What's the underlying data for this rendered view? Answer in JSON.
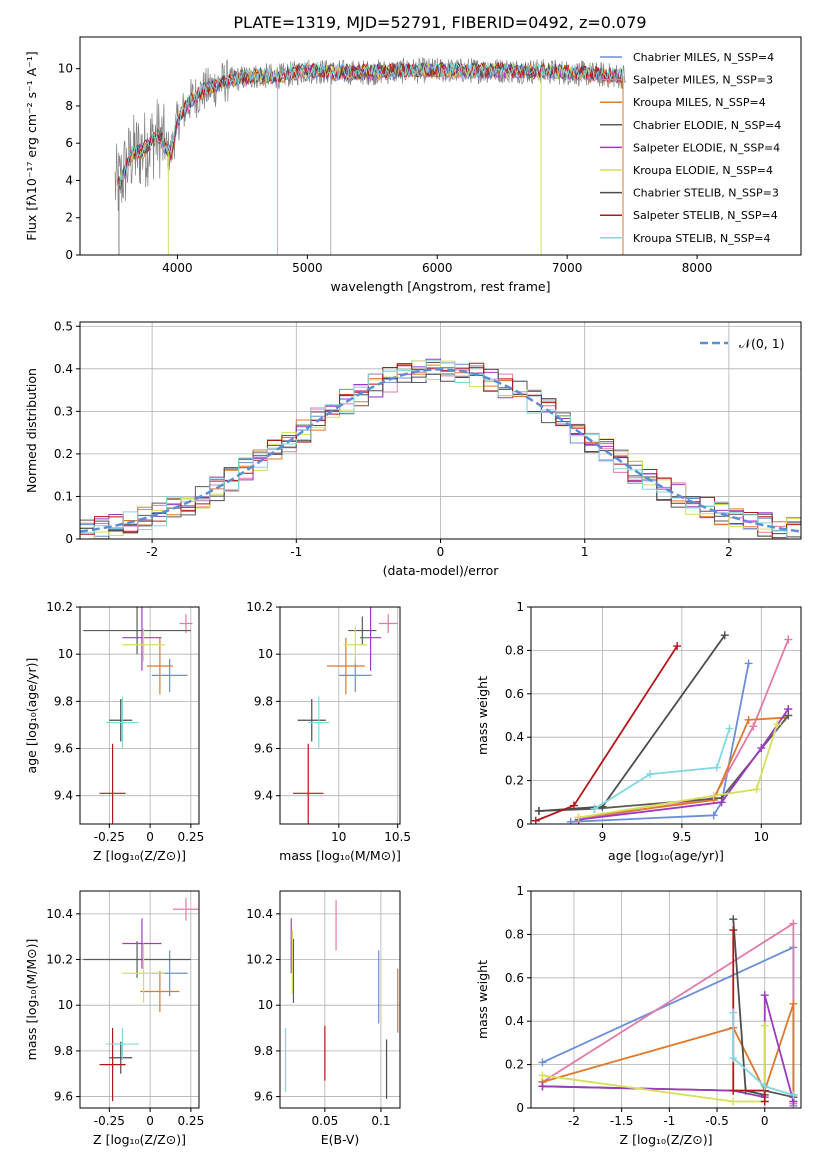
{
  "figure": {
    "title": "PLATE=1319, MJD=52791, FIBERID=0492, z=0.079"
  },
  "series_colors": [
    "#6b8fd6",
    "#e27aa9",
    "#e0782a",
    "#5a5a5a",
    "#9b3bbf",
    "#d4e05a",
    "#4d4d4d",
    "#b3161b",
    "#80d8e0"
  ],
  "chart_data": [
    {
      "id": "spectrum",
      "type": "line",
      "title": "PLATE=1319, MJD=52791, FIBERID=0492, z=0.079",
      "xlabel": "wavelength [Angstrom, rest frame]",
      "ylabel": "Flux [fλ10⁻¹⁷ erg cm⁻² s⁻¹ A⁻¹]",
      "xlim": [
        3250,
        8800
      ],
      "ylim": [
        0,
        11.7
      ],
      "xticks": [
        4000,
        5000,
        6000,
        7000,
        8000
      ],
      "yticks": [
        0,
        2,
        4,
        6,
        8,
        10
      ],
      "grid": false,
      "legend_position": "top-right",
      "data_color": "#808080",
      "continuum": {
        "x": [
          3550,
          3650,
          3750,
          3850,
          3950,
          4000,
          4100,
          4200,
          4400,
          4600,
          4800,
          5000,
          5200,
          5500,
          5800,
          6000,
          6300,
          6600,
          7000,
          7200,
          7400
        ],
        "y": [
          3.8,
          5.4,
          5.7,
          6.4,
          5.4,
          7.2,
          8.3,
          8.8,
          9.4,
          9.6,
          9.6,
          9.9,
          9.8,
          9.8,
          9.9,
          9.9,
          9.9,
          9.9,
          9.8,
          9.7,
          9.6
        ]
      },
      "series": [
        {
          "name": "Chabrier MILES, N_SSP=4"
        },
        {
          "name": "Salpeter MILES, N_SSP=3"
        },
        {
          "name": "Kroupa MILES, N_SSP=4"
        },
        {
          "name": "Chabrier ELODIE, N_SSP=4"
        },
        {
          "name": "Salpeter ELODIE, N_SSP=4"
        },
        {
          "name": "Kroupa ELODIE, N_SSP=4"
        },
        {
          "name": "Chabrier STELIB, N_SSP=3"
        },
        {
          "name": "Salpeter STELIB, N_SSP=4"
        },
        {
          "name": "Kroupa STELIB, N_SSP=4"
        }
      ]
    },
    {
      "id": "residuals",
      "type": "histogram",
      "xlabel": "(data-model)/error",
      "ylabel": "Normed distribution",
      "xlim": [
        -2.5,
        2.5
      ],
      "ylim": [
        0,
        0.51
      ],
      "xticks": [
        -2,
        -1,
        0,
        1,
        2
      ],
      "yticks": [
        0.0,
        0.1,
        0.2,
        0.3,
        0.4,
        0.5
      ],
      "grid": true,
      "legend_position": "top-right",
      "legend_label": "𝒩(0, 1)",
      "bins": {
        "start": -2.5,
        "width": 0.1,
        "count": 50
      }
    },
    {
      "id": "age_vs_Z",
      "type": "scatter",
      "xlabel": "Z [log₁₀(Z/Z⊙)]",
      "ylabel": "age  [log₁₀(age/yr)]",
      "xlim": [
        -0.43,
        0.3
      ],
      "ylim": [
        9.28,
        10.2
      ],
      "xticks": [
        -0.25,
        0.0,
        0.25
      ],
      "yticks": [
        9.4,
        9.6,
        9.8,
        10.0,
        10.2
      ],
      "grid": true,
      "points": [
        {
          "x": 0.12,
          "y": 9.91,
          "xerr": 0.11,
          "yerr": 0.07
        },
        {
          "x": 0.22,
          "y": 10.13,
          "xerr": 0.04,
          "yerr": 0.04
        },
        {
          "x": 0.06,
          "y": 9.95,
          "xerr": 0.08,
          "yerr": 0.12
        },
        {
          "x": -0.08,
          "y": 10.1,
          "xerr": 0.33,
          "yerr": 0.1
        },
        {
          "x": -0.05,
          "y": 10.07,
          "xerr": 0.12,
          "yerr": 0.14
        },
        {
          "x": -0.04,
          "y": 10.04,
          "xerr": 0.13,
          "yerr": 0.07
        },
        {
          "x": -0.18,
          "y": 9.72,
          "xerr": 0.07,
          "yerr": 0.09
        },
        {
          "x": -0.23,
          "y": 9.41,
          "xerr": 0.08,
          "yerr": 0.21
        },
        {
          "x": -0.17,
          "y": 9.71,
          "xerr": 0.1,
          "yerr": 0.11
        }
      ]
    },
    {
      "id": "age_vs_mass",
      "type": "scatter",
      "xlabel": "mass [log₁₀(M/M⊙)]",
      "ylabel": "",
      "xlim": [
        9.5,
        10.52
      ],
      "ylim": [
        9.28,
        10.2
      ],
      "xticks": [
        10.0,
        10.5
      ],
      "yticks": [
        9.4,
        9.6,
        9.8,
        10.0,
        10.2
      ],
      "grid": true,
      "points": [
        {
          "x": 10.14,
          "y": 9.91,
          "xerr": 0.14,
          "yerr": 0.07
        },
        {
          "x": 10.42,
          "y": 10.13,
          "xerr": 0.08,
          "yerr": 0.04
        },
        {
          "x": 10.06,
          "y": 9.95,
          "xerr": 0.16,
          "yerr": 0.12
        },
        {
          "x": 10.2,
          "y": 10.1,
          "xerr": 0.12,
          "yerr": 0.06
        },
        {
          "x": 10.27,
          "y": 10.07,
          "xerr": 0.09,
          "yerr": 0.14
        },
        {
          "x": 10.14,
          "y": 10.04,
          "xerr": 0.1,
          "yerr": 0.08
        },
        {
          "x": 9.77,
          "y": 9.72,
          "xerr": 0.12,
          "yerr": 0.09
        },
        {
          "x": 9.74,
          "y": 9.41,
          "xerr": 0.13,
          "yerr": 0.21
        },
        {
          "x": 9.83,
          "y": 9.71,
          "xerr": 0.09,
          "yerr": 0.11
        }
      ]
    },
    {
      "id": "weight_vs_age",
      "type": "line",
      "xlabel": "age  [log₁₀(age/yr)]",
      "ylabel": "mass weight",
      "xlim": [
        8.55,
        10.25
      ],
      "ylim": [
        0,
        1.0
      ],
      "xticks": [
        9.0,
        9.5,
        10.0
      ],
      "yticks": [
        0.0,
        0.2,
        0.4,
        0.6,
        0.8,
        1.0
      ],
      "grid": true,
      "series": [
        {
          "x": [
            8.8,
            9.7,
            9.75,
            9.92
          ],
          "y": [
            0.01,
            0.04,
            0.1,
            0.74
          ]
        },
        {
          "x": [
            8.85,
            9.7,
            9.95,
            10.17
          ],
          "y": [
            0.02,
            0.12,
            0.45,
            0.85
          ]
        },
        {
          "x": [
            8.85,
            9.7,
            9.92,
            10.15
          ],
          "y": [
            0.03,
            0.11,
            0.48,
            0.49
          ]
        },
        {
          "x": [
            8.6,
            8.95,
            9.75,
            10.17
          ],
          "y": [
            0.06,
            0.07,
            0.12,
            0.5
          ]
        },
        {
          "x": [
            8.85,
            9.75,
            10.0,
            10.17
          ],
          "y": [
            0.02,
            0.1,
            0.35,
            0.53
          ]
        },
        {
          "x": [
            8.85,
            9.7,
            9.97,
            10.1
          ],
          "y": [
            0.03,
            0.13,
            0.16,
            0.46
          ]
        },
        {
          "x": [
            8.6,
            9.0,
            9.77
          ],
          "y": [
            0.06,
            0.08,
            0.87
          ]
        },
        {
          "x": [
            8.58,
            8.82,
            9.47
          ],
          "y": [
            0.015,
            0.085,
            0.82
          ]
        },
        {
          "x": [
            8.95,
            9.3,
            9.72,
            9.8
          ],
          "y": [
            0.07,
            0.23,
            0.26,
            0.44
          ]
        }
      ]
    },
    {
      "id": "mass_vs_Z",
      "type": "scatter",
      "xlabel": "Z [log₁₀(Z/Z⊙)]",
      "ylabel": "mass [log₁₀(M/M⊙)]",
      "xlim": [
        -0.43,
        0.3
      ],
      "ylim": [
        9.55,
        10.5
      ],
      "xticks": [
        -0.25,
        0.0,
        0.25
      ],
      "yticks": [
        9.6,
        9.8,
        10.0,
        10.2,
        10.4
      ],
      "grid": true,
      "points": [
        {
          "x": 0.12,
          "y": 10.14,
          "xerr": 0.11,
          "yerr": 0.1
        },
        {
          "x": 0.22,
          "y": 10.42,
          "xerr": 0.08,
          "yerr": 0.05
        },
        {
          "x": 0.06,
          "y": 10.06,
          "xerr": 0.12,
          "yerr": 0.09
        },
        {
          "x": -0.08,
          "y": 10.2,
          "xerr": 0.33,
          "yerr": 0.08
        },
        {
          "x": -0.05,
          "y": 10.27,
          "xerr": 0.12,
          "yerr": 0.11
        },
        {
          "x": -0.04,
          "y": 10.14,
          "xerr": 0.13,
          "yerr": 0.13
        },
        {
          "x": -0.18,
          "y": 9.77,
          "xerr": 0.07,
          "yerr": 0.07
        },
        {
          "x": -0.23,
          "y": 9.74,
          "xerr": 0.08,
          "yerr": 0.16
        },
        {
          "x": -0.17,
          "y": 9.83,
          "xerr": 0.1,
          "yerr": 0.07
        }
      ]
    },
    {
      "id": "mass_vs_ebv",
      "type": "scatter",
      "xlabel": "E(B-V)",
      "ylabel": "",
      "xlim": [
        0.01,
        0.117
      ],
      "ylim": [
        9.55,
        10.5
      ],
      "xticks": [
        0.05,
        0.1
      ],
      "yticks": [
        9.6,
        9.8,
        10.0,
        10.2,
        10.4
      ],
      "grid": true,
      "points": [
        {
          "x": 0.098,
          "y": 10.08,
          "xerr": 0,
          "yerr": 0.16
        },
        {
          "x": 0.06,
          "y": 10.35,
          "xerr": 0,
          "yerr": 0.11
        },
        {
          "x": 0.115,
          "y": 10.02,
          "xerr": 0,
          "yerr": 0.14
        },
        {
          "x": 0.022,
          "y": 10.15,
          "xerr": 0,
          "yerr": 0.14
        },
        {
          "x": 0.02,
          "y": 10.26,
          "xerr": 0,
          "yerr": 0.12
        },
        {
          "x": 0.021,
          "y": 10.19,
          "xerr": 0,
          "yerr": 0.14
        },
        {
          "x": 0.105,
          "y": 9.72,
          "xerr": 0,
          "yerr": 0.13
        },
        {
          "x": 0.05,
          "y": 9.79,
          "xerr": 0,
          "yerr": 0.12
        },
        {
          "x": 0.015,
          "y": 9.76,
          "xerr": 0,
          "yerr": 0.14
        }
      ]
    },
    {
      "id": "weight_vs_Z",
      "type": "line",
      "xlabel": "Z [log₁₀(Z/Z⊙)]",
      "ylabel": "mass weight",
      "xlim": [
        -2.45,
        0.38
      ],
      "ylim": [
        0,
        1.0
      ],
      "xticks": [
        -2.0,
        -1.5,
        -1.0,
        -0.5,
        0.0
      ],
      "yticks": [
        0.0,
        0.2,
        0.4,
        0.6,
        0.8,
        1.0
      ],
      "grid": true,
      "series": [
        {
          "x": [
            -2.33,
            0.3,
            0.3,
            0.3
          ],
          "y": [
            0.21,
            0.74,
            0.06,
            0.01
          ]
        },
        {
          "x": [
            -2.33,
            0.3,
            0.3
          ],
          "y": [
            0.12,
            0.85,
            0.02
          ]
        },
        {
          "x": [
            -2.33,
            -0.33,
            0.0,
            0.3,
            0.3
          ],
          "y": [
            0.12,
            0.37,
            0.08,
            0.48,
            0.03
          ]
        },
        {
          "x": [
            -2.33,
            -0.33,
            0.0,
            0.3
          ],
          "y": [
            0.1,
            0.08,
            0.08,
            0.05
          ]
        },
        {
          "x": [
            -2.33,
            -0.33,
            0.0,
            0.0,
            0.3
          ],
          "y": [
            0.1,
            0.08,
            0.05,
            0.52,
            0.03
          ]
        },
        {
          "x": [
            -2.33,
            -0.33,
            0.0,
            0.0
          ],
          "y": [
            0.15,
            0.03,
            0.03,
            0.38
          ]
        },
        {
          "x": [
            -0.33,
            -0.2,
            0.0
          ],
          "y": [
            0.87,
            0.08,
            0.06
          ]
        },
        {
          "x": [
            -0.33,
            -0.33,
            0.0,
            0.0
          ],
          "y": [
            0.82,
            0.08,
            0.08,
            0.03
          ]
        },
        {
          "x": [
            -0.33,
            -0.33,
            0.0,
            0.3
          ],
          "y": [
            0.44,
            0.23,
            0.1,
            0.06
          ]
        }
      ]
    }
  ]
}
